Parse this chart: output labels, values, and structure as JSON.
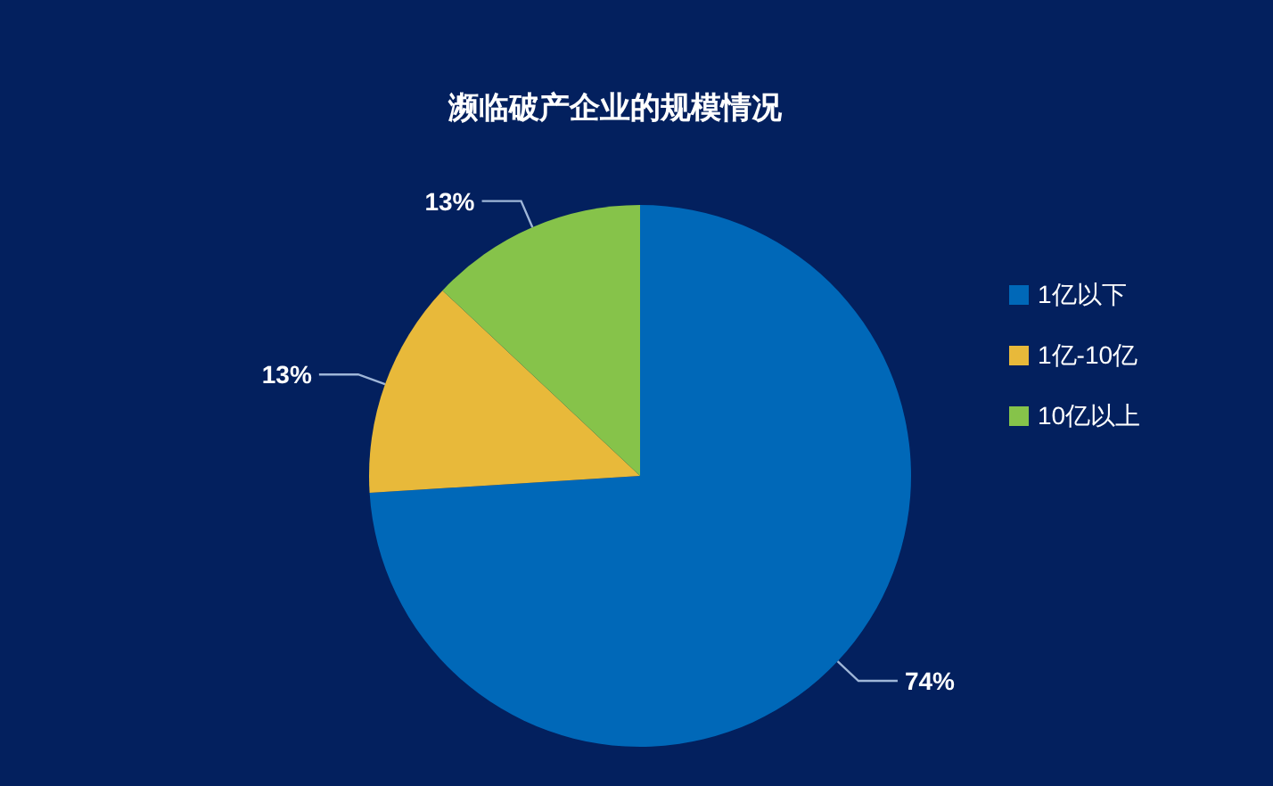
{
  "chart_data": {
    "type": "pie",
    "title": "濒临破产企业的规模情况",
    "categories": [
      "1亿以下",
      "1亿-10亿",
      "10亿以上"
    ],
    "values": [
      74,
      13,
      13
    ],
    "colors": [
      "#0068b8",
      "#e8b93a",
      "#86c34a"
    ],
    "value_labels": [
      "74%",
      "13%",
      "13%"
    ],
    "legend": "right"
  }
}
